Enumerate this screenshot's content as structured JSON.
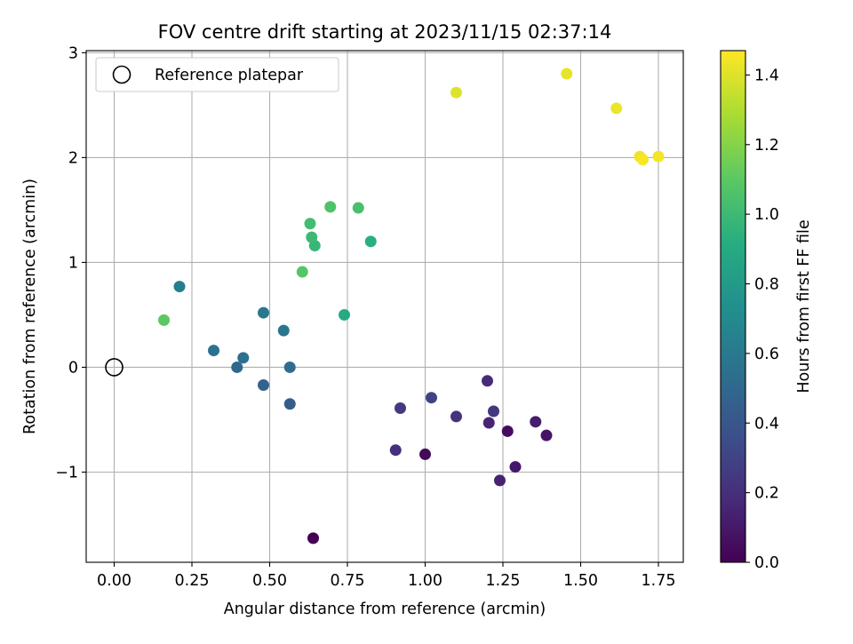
{
  "chart_data": {
    "type": "scatter",
    "title": "FOV centre drift starting at 2023/11/15 02:37:14",
    "xlabel": "Angular distance from reference (arcmin)",
    "ylabel": "Rotation from reference (arcmin)",
    "xlim": [
      -0.09,
      1.83
    ],
    "ylim": [
      -1.86,
      3.02
    ],
    "xticks": [
      0.0,
      0.25,
      0.5,
      0.75,
      1.0,
      1.25,
      1.5,
      1.75
    ],
    "xtick_labels": [
      "0.00",
      "0.25",
      "0.50",
      "0.75",
      "1.00",
      "1.25",
      "1.50",
      "1.75"
    ],
    "yticks": [
      -1,
      0,
      1,
      2,
      3
    ],
    "ytick_labels": [
      "−1",
      "0",
      "1",
      "2",
      "3"
    ],
    "grid": true,
    "legend": {
      "position": "top-left",
      "entries": [
        "Reference platepar"
      ]
    },
    "reference_point": {
      "x": 0.0,
      "y": 0.0
    },
    "colorbar": {
      "label": "Hours from first FF file",
      "colormap": "viridis",
      "range": [
        0.0,
        1.47
      ],
      "ticks": [
        0.0,
        0.2,
        0.4,
        0.6,
        0.8,
        1.0,
        1.2,
        1.4
      ],
      "tick_labels": [
        "0.0",
        "0.2",
        "0.4",
        "0.6",
        "0.8",
        "1.0",
        "1.2",
        "1.4"
      ]
    },
    "points": [
      {
        "x": 0.64,
        "y": -1.63,
        "c": 0.0
      },
      {
        "x": 1.0,
        "y": -0.83,
        "c": 0.03
      },
      {
        "x": 1.265,
        "y": -0.61,
        "c": 0.05
      },
      {
        "x": 1.39,
        "y": -0.65,
        "c": 0.08
      },
      {
        "x": 1.29,
        "y": -0.95,
        "c": 0.1
      },
      {
        "x": 1.355,
        "y": -0.52,
        "c": 0.12
      },
      {
        "x": 1.24,
        "y": -1.08,
        "c": 0.14
      },
      {
        "x": 1.205,
        "y": -0.53,
        "c": 0.16
      },
      {
        "x": 1.2,
        "y": -0.13,
        "c": 0.18
      },
      {
        "x": 0.905,
        "y": -0.79,
        "c": 0.2
      },
      {
        "x": 1.1,
        "y": -0.47,
        "c": 0.22
      },
      {
        "x": 1.22,
        "y": -0.42,
        "c": 0.24
      },
      {
        "x": 0.92,
        "y": -0.39,
        "c": 0.26
      },
      {
        "x": 1.02,
        "y": -0.29,
        "c": 0.3
      },
      {
        "x": 0.565,
        "y": -0.35,
        "c": 0.43
      },
      {
        "x": 0.48,
        "y": -0.17,
        "c": 0.47
      },
      {
        "x": 0.395,
        "y": 0.0,
        "c": 0.5
      },
      {
        "x": 0.565,
        "y": 0.0,
        "c": 0.52
      },
      {
        "x": 0.415,
        "y": 0.09,
        "c": 0.54
      },
      {
        "x": 0.32,
        "y": 0.16,
        "c": 0.56
      },
      {
        "x": 0.545,
        "y": 0.35,
        "c": 0.58
      },
      {
        "x": 0.48,
        "y": 0.52,
        "c": 0.6
      },
      {
        "x": 0.21,
        "y": 0.77,
        "c": 0.63
      },
      {
        "x": 0.74,
        "y": 0.5,
        "c": 0.9
      },
      {
        "x": 0.825,
        "y": 1.2,
        "c": 0.93
      },
      {
        "x": 0.645,
        "y": 1.16,
        "c": 0.98
      },
      {
        "x": 0.635,
        "y": 1.24,
        "c": 1.0
      },
      {
        "x": 0.63,
        "y": 1.37,
        "c": 1.02
      },
      {
        "x": 0.785,
        "y": 1.52,
        "c": 1.04
      },
      {
        "x": 0.695,
        "y": 1.53,
        "c": 1.06
      },
      {
        "x": 0.605,
        "y": 0.91,
        "c": 1.08
      },
      {
        "x": 0.16,
        "y": 0.45,
        "c": 1.1
      },
      {
        "x": 1.1,
        "y": 2.62,
        "c": 1.4
      },
      {
        "x": 1.455,
        "y": 2.8,
        "c": 1.42
      },
      {
        "x": 1.615,
        "y": 2.47,
        "c": 1.43
      },
      {
        "x": 1.69,
        "y": 2.01,
        "c": 1.44
      },
      {
        "x": 1.75,
        "y": 2.01,
        "c": 1.45
      },
      {
        "x": 1.7,
        "y": 1.98,
        "c": 1.46
      }
    ]
  }
}
